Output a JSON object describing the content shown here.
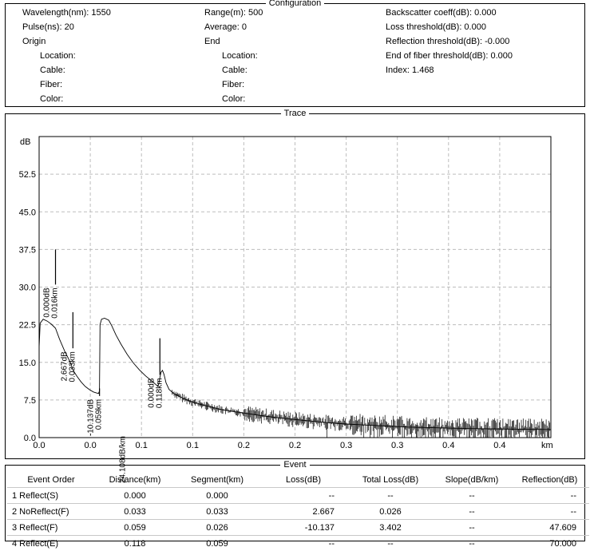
{
  "configuration": {
    "title": "Configuration",
    "col1": [
      "Wavelength(nm): 1550",
      "Pulse(ns): 20",
      "Origin",
      "Location:",
      "Cable:",
      "Fiber:",
      "Color:"
    ],
    "col2": [
      "Range(m): 500",
      "Average: 0",
      "End",
      "Location:",
      "Cable:",
      "Fiber:",
      "Color:"
    ],
    "col3": [
      "Backscatter coeff(dB): 0.000",
      "Loss threshold(dB): 0.000",
      "Reflection threshold(dB): -0.000",
      "End of fiber threshold(dB): 0.000",
      "Index: 1.468"
    ]
  },
  "trace": {
    "title": "Trace",
    "y_unit": "dB",
    "x_unit": "km"
  },
  "chart_data": {
    "type": "line",
    "xlim": [
      0,
      0.5
    ],
    "ylim": [
      0,
      60
    ],
    "y_ticks": [
      0,
      7.5,
      15,
      22.5,
      30,
      37.5,
      45,
      52.5
    ],
    "y_tick_labels": [
      "0.0",
      "7.5",
      "15.0",
      "22.5",
      "30.0",
      "37.5",
      "45.0",
      "52.5"
    ],
    "x_ticks": [
      0,
      0.05,
      0.1,
      0.15,
      0.2,
      0.25,
      0.3,
      0.35,
      0.4,
      0.45
    ],
    "x_tick_labels": [
      "0.0",
      "0.0",
      "0.1",
      "0.1",
      "0.2",
      "0.2",
      "0.3",
      "0.3",
      "0.4",
      "0.4"
    ],
    "grid": true,
    "trace_points": [
      [
        0.0,
        18.0
      ],
      [
        0.001,
        22.8
      ],
      [
        0.004,
        23.6
      ],
      [
        0.008,
        23.2
      ],
      [
        0.012,
        22.6
      ],
      [
        0.016,
        21.8
      ],
      [
        0.02,
        19.6
      ],
      [
        0.025,
        17.2
      ],
      [
        0.03,
        15.2
      ],
      [
        0.033,
        13.5
      ],
      [
        0.037,
        12.2
      ],
      [
        0.041,
        11.1
      ],
      [
        0.045,
        10.2
      ],
      [
        0.049,
        9.6
      ],
      [
        0.053,
        9.1
      ],
      [
        0.056,
        8.9
      ],
      [
        0.058,
        8.8
      ],
      [
        0.059,
        9.3
      ],
      [
        0.0595,
        22.5
      ],
      [
        0.061,
        23.6
      ],
      [
        0.064,
        23.8
      ],
      [
        0.068,
        23.4
      ],
      [
        0.071,
        22.3
      ],
      [
        0.075,
        20.5
      ],
      [
        0.08,
        18.6
      ],
      [
        0.086,
        16.6
      ],
      [
        0.092,
        14.9
      ],
      [
        0.098,
        13.5
      ],
      [
        0.104,
        12.3
      ],
      [
        0.11,
        11.3
      ],
      [
        0.114,
        10.6
      ],
      [
        0.116,
        10.2
      ],
      [
        0.117,
        10.8
      ],
      [
        0.118,
        12.0
      ],
      [
        0.119,
        13.0
      ],
      [
        0.1205,
        13.4
      ],
      [
        0.122,
        12.6
      ],
      [
        0.124,
        10.9
      ],
      [
        0.127,
        9.6
      ],
      [
        0.131,
        8.9
      ],
      [
        0.136,
        8.3
      ],
      [
        0.142,
        7.7
      ],
      [
        0.15,
        7.1
      ],
      [
        0.16,
        6.5
      ],
      [
        0.17,
        6.0
      ],
      [
        0.18,
        5.5
      ],
      [
        0.2,
        4.9
      ],
      [
        0.22,
        4.3
      ],
      [
        0.24,
        3.8
      ],
      [
        0.26,
        3.4
      ],
      [
        0.28,
        3.0
      ],
      [
        0.3,
        2.7
      ],
      [
        0.32,
        2.5
      ],
      [
        0.34,
        2.3
      ],
      [
        0.36,
        2.1
      ],
      [
        0.38,
        2.0
      ],
      [
        0.4,
        1.9
      ],
      [
        0.42,
        1.8
      ],
      [
        0.44,
        1.75
      ],
      [
        0.46,
        1.7
      ],
      [
        0.48,
        1.65
      ],
      [
        0.5,
        1.6
      ]
    ],
    "event_markers": [
      {
        "x": 0.016,
        "y_from": 30.5,
        "y_to": 37.5,
        "labels": [
          "0.000dB",
          "0.016km"
        ]
      },
      {
        "x": 0.033,
        "y_from": 17.8,
        "y_to": 25.0,
        "labels": [
          "2.667dB",
          "0.033km"
        ]
      },
      {
        "x": 0.059,
        "y_from": 8.3,
        "y_to": 9.8,
        "labels": [
          "-10.137dB",
          "0.059km"
        ]
      },
      {
        "x": 0.09,
        "y_from": 0.0,
        "y_to": 0.0,
        "labels": [
          "24.108dB/km"
        ]
      },
      {
        "x": 0.118,
        "y_from": 12.5,
        "y_to": 19.8,
        "labels": [
          "0.000dB",
          "0.118km"
        ]
      }
    ]
  },
  "events": {
    "title": "Event",
    "columns": [
      "Event Order",
      "Distance(km)",
      "Segment(km)",
      "Loss(dB)",
      "Total Loss(dB)",
      "Slope(dB/km)",
      "Reflection(dB)"
    ],
    "rows": [
      [
        "1 Reflect(S)",
        "0.000",
        "0.000",
        "--",
        "--",
        "--",
        "--"
      ],
      [
        "2 NoReflect(F)",
        "0.033",
        "0.033",
        "2.667",
        "0.026",
        "--",
        "--"
      ],
      [
        "3 Reflect(F)",
        "0.059",
        "0.026",
        "-10.137",
        "3.402",
        "--",
        "47.609"
      ],
      [
        "4 Reflect(E)",
        "0.118",
        "0.059",
        "--",
        "--",
        "--",
        "70.000"
      ]
    ]
  }
}
